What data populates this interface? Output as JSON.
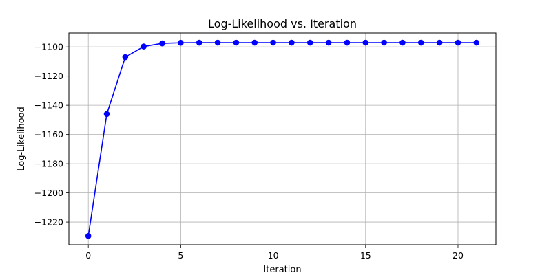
{
  "chart_data": {
    "type": "line",
    "title": "Log-Likelihood vs. Iteration",
    "xlabel": "Iteration",
    "ylabel": "Log-Likelihood",
    "xlim": [
      -1.05,
      22.05
    ],
    "ylim": [
      -1235.5,
      -1090.5
    ],
    "xticks": [
      0,
      5,
      10,
      15,
      20
    ],
    "yticks": [
      -1220,
      -1200,
      -1180,
      -1160,
      -1140,
      -1120,
      -1100
    ],
    "grid": true,
    "series": [
      {
        "color": "#0000ff",
        "marker": "circle",
        "x": [
          0,
          1,
          2,
          3,
          4,
          5,
          6,
          7,
          8,
          9,
          10,
          11,
          12,
          13,
          14,
          15,
          16,
          17,
          18,
          19,
          20,
          21
        ],
        "y": [
          -1229.5,
          -1146.0,
          -1107.0,
          -1099.7,
          -1097.6,
          -1097.2,
          -1097.1,
          -1097.1,
          -1097.1,
          -1097.1,
          -1097.1,
          -1097.1,
          -1097.1,
          -1097.1,
          -1097.1,
          -1097.1,
          -1097.1,
          -1097.1,
          -1097.1,
          -1097.1,
          -1097.1,
          -1097.1
        ]
      }
    ]
  }
}
